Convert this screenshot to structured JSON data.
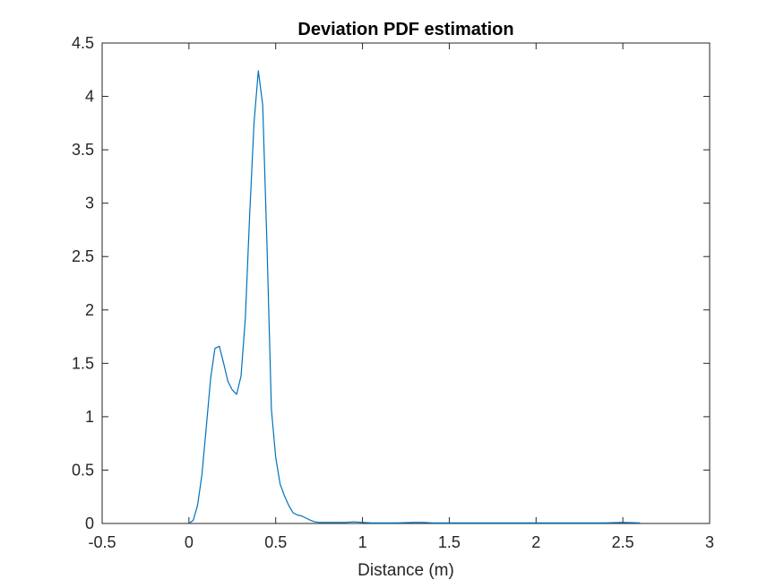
{
  "chart_data": {
    "type": "line",
    "title": "Deviation PDF estimation",
    "xlabel": "Distance (m)",
    "ylabel": "",
    "xlim": [
      -0.5,
      3
    ],
    "ylim": [
      0,
      4.5
    ],
    "xticks": [
      -0.5,
      0,
      0.5,
      1,
      1.5,
      2,
      2.5,
      3
    ],
    "xtick_labels": [
      "-0.5",
      "0",
      "0.5",
      "1",
      "1.5",
      "2",
      "2.5",
      "3"
    ],
    "yticks": [
      0,
      0.5,
      1,
      1.5,
      2,
      2.5,
      3,
      3.5,
      4,
      4.5
    ],
    "ytick_labels": [
      "0",
      "0.5",
      "1",
      "1.5",
      "2",
      "2.5",
      "3",
      "3.5",
      "4",
      "4.5"
    ],
    "grid": false,
    "box": true,
    "series": [
      {
        "color": "#0072bd",
        "x": [
          0.0,
          0.025,
          0.05,
          0.075,
          0.1,
          0.125,
          0.15,
          0.175,
          0.2,
          0.225,
          0.25,
          0.275,
          0.3,
          0.325,
          0.35,
          0.375,
          0.4,
          0.425,
          0.45,
          0.475,
          0.5,
          0.525,
          0.55,
          0.575,
          0.6,
          0.625,
          0.65,
          0.675,
          0.7,
          0.725,
          0.75,
          0.775,
          0.8,
          0.85,
          0.9,
          0.95,
          1.0,
          1.05,
          1.1,
          1.2,
          1.3,
          1.35,
          1.4,
          1.5,
          1.6,
          1.7,
          1.8,
          1.9,
          2.0,
          2.1,
          2.2,
          2.3,
          2.4,
          2.5,
          2.6
        ],
        "y": [
          0.0,
          0.03,
          0.17,
          0.46,
          0.9,
          1.36,
          1.64,
          1.66,
          1.5,
          1.33,
          1.25,
          1.21,
          1.38,
          1.92,
          2.9,
          3.75,
          4.24,
          3.92,
          2.6,
          1.07,
          0.62,
          0.37,
          0.26,
          0.17,
          0.1,
          0.08,
          0.07,
          0.05,
          0.03,
          0.015,
          0.01,
          0.01,
          0.01,
          0.01,
          0.01,
          0.015,
          0.01,
          0.005,
          0.005,
          0.005,
          0.01,
          0.01,
          0.005,
          0.005,
          0.005,
          0.005,
          0.005,
          0.005,
          0.005,
          0.005,
          0.005,
          0.005,
          0.005,
          0.01,
          0.005
        ]
      }
    ]
  }
}
